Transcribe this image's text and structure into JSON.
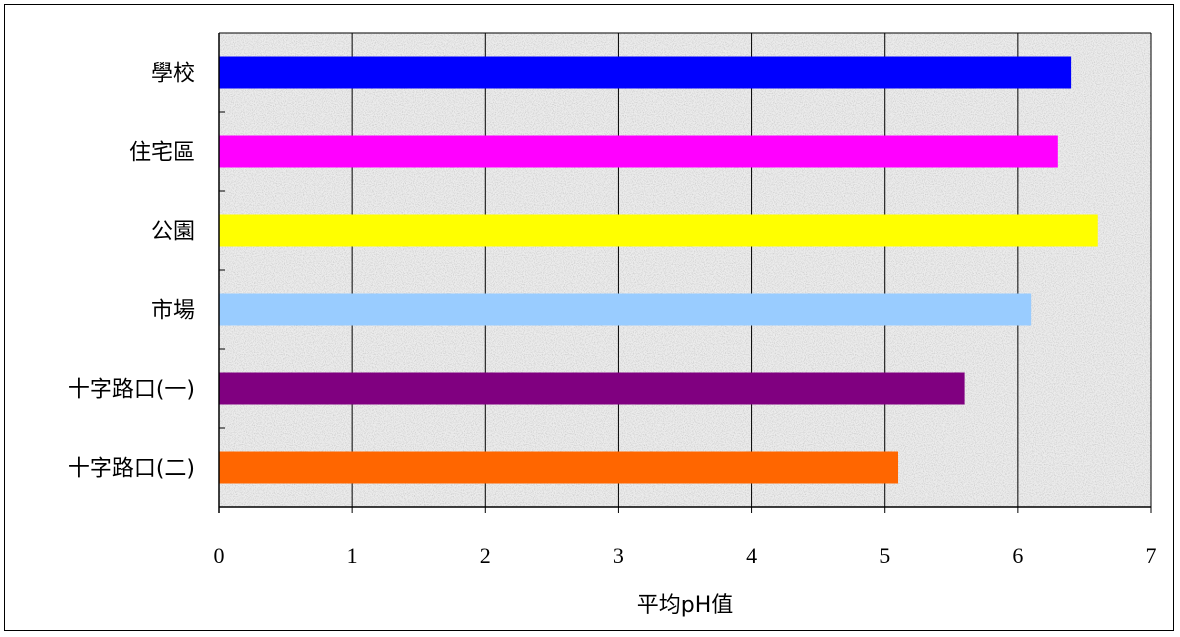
{
  "chart_data": {
    "type": "bar",
    "orientation": "horizontal",
    "categories": [
      "學校",
      "住宅區",
      "公園",
      "市場",
      "十字路口(一)",
      "十字路口(二)"
    ],
    "values": [
      6.4,
      6.3,
      6.6,
      6.1,
      5.6,
      5.1
    ],
    "colors": [
      "#0000ff",
      "#ff00ff",
      "#ffff00",
      "#99ccff",
      "#800080",
      "#ff6600"
    ],
    "xlabel": "平均pH值",
    "xlim": [
      0,
      7
    ],
    "xticks": [
      0,
      1,
      2,
      3,
      4,
      5,
      6,
      7
    ],
    "grid": "vertical",
    "legend": "none",
    "plot_background": "#e6e6e6"
  }
}
